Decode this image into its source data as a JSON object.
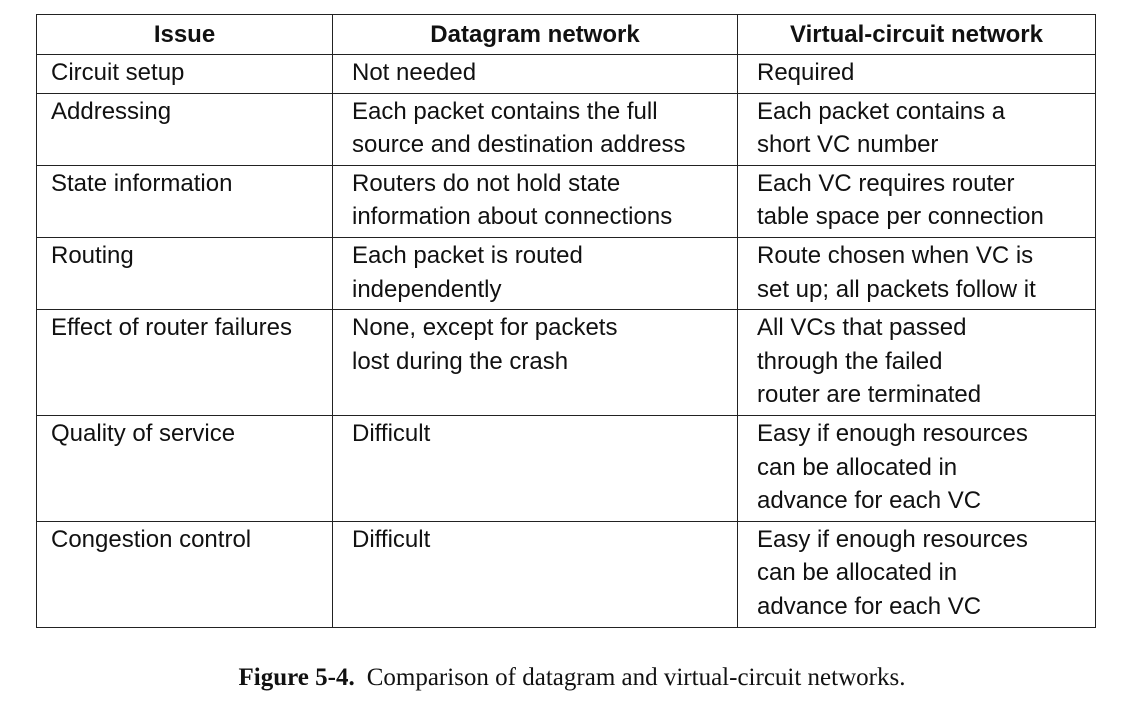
{
  "table": {
    "headers": [
      "Issue",
      "Datagram network",
      "Virtual-circuit network"
    ],
    "rows": [
      {
        "issue": [
          "Circuit setup"
        ],
        "datagram": [
          "Not needed"
        ],
        "vc": [
          "Required"
        ]
      },
      {
        "issue": [
          "Addressing"
        ],
        "datagram": [
          "Each packet contains the full",
          "source and destination address"
        ],
        "vc": [
          "Each packet contains a",
          "short VC number"
        ]
      },
      {
        "issue": [
          "State information"
        ],
        "datagram": [
          "Routers do not hold state",
          "information about connections"
        ],
        "vc": [
          "Each VC requires router",
          "table space per connection"
        ]
      },
      {
        "issue": [
          "Routing"
        ],
        "datagram": [
          "Each packet is routed",
          "independently"
        ],
        "vc": [
          "Route chosen when VC is",
          "set up; all packets follow it"
        ]
      },
      {
        "issue": [
          "Effect of router failures"
        ],
        "datagram": [
          "None, except for packets",
          "lost during the crash"
        ],
        "vc": [
          "All VCs that passed",
          "through the failed",
          "router are terminated"
        ]
      },
      {
        "issue": [
          "Quality of service"
        ],
        "datagram": [
          "Difficult"
        ],
        "vc": [
          "Easy if enough resources",
          "can be allocated in",
          "advance for each VC"
        ]
      },
      {
        "issue": [
          "Congestion control"
        ],
        "datagram": [
          "Difficult"
        ],
        "vc": [
          "Easy if enough resources",
          "can be allocated in",
          "advance for each VC"
        ]
      }
    ]
  },
  "caption": {
    "label": "Figure 5-4.",
    "text": "Comparison of datagram and virtual-circuit networks."
  }
}
